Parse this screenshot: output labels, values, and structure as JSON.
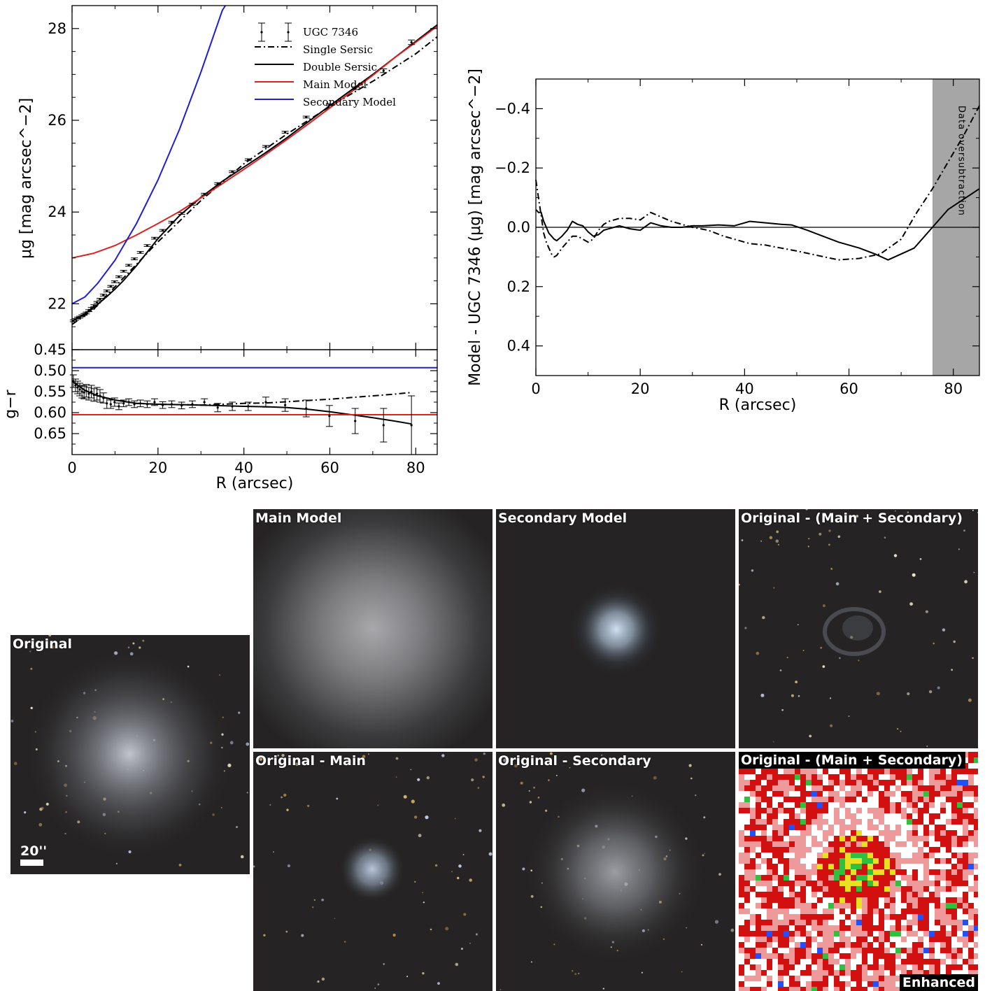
{
  "chart_data": [
    {
      "type": "line",
      "panel": "surface-brightness-profile",
      "ylabel": "μg [mag arcsec^−2]",
      "xlim": [
        0,
        85
      ],
      "ylim": [
        28.5,
        21.0
      ],
      "yticks": [
        "22",
        "24",
        "26",
        "28"
      ],
      "legend_position": "top-right",
      "legend": [
        "UGC 7346",
        "Single Sersic",
        "Double Sersic",
        "Main Model",
        "Secondary Model"
      ],
      "colors": {
        "data": "#000000",
        "single": "#000000",
        "double": "#000000",
        "main": "#e02020",
        "secondary": "#1f1fd0"
      },
      "observed": {
        "name": "UGC 7346",
        "x": [
          0.3,
          0.8,
          1.3,
          1.8,
          2.3,
          2.8,
          3.3,
          3.9,
          4.5,
          5.1,
          5.8,
          6.5,
          7.3,
          8.1,
          9.0,
          9.9,
          10.9,
          12.0,
          13.2,
          14.5,
          15.9,
          17.5,
          19.2,
          21.1,
          23.2,
          25.5,
          28.0,
          30.8,
          33.9,
          37.3,
          41.0,
          45.1,
          49.6,
          54.5,
          59.9,
          65.9,
          72.5,
          79.0
        ],
        "y": [
          21.63,
          21.66,
          21.69,
          21.71,
          21.74,
          21.77,
          21.8,
          21.85,
          21.9,
          21.96,
          22.03,
          22.1,
          22.19,
          22.28,
          22.38,
          22.48,
          22.59,
          22.71,
          22.84,
          22.98,
          23.12,
          23.27,
          23.43,
          23.6,
          23.78,
          23.97,
          24.17,
          24.39,
          24.62,
          24.88,
          25.14,
          25.43,
          25.74,
          26.07,
          26.34,
          26.7,
          27.08,
          27.7
        ],
        "yerr": [
          0.02,
          0.02,
          0.02,
          0.02,
          0.02,
          0.02,
          0.02,
          0.02,
          0.02,
          0.02,
          0.02,
          0.02,
          0.02,
          0.02,
          0.02,
          0.02,
          0.02,
          0.02,
          0.02,
          0.02,
          0.02,
          0.02,
          0.02,
          0.02,
          0.02,
          0.02,
          0.02,
          0.02,
          0.02,
          0.02,
          0.02,
          0.02,
          0.02,
          0.02,
          0.02,
          0.03,
          0.04,
          0.05
        ]
      },
      "series": [
        {
          "name": "Single Sersic",
          "style": "dashdot",
          "x": [
            0,
            5,
            10,
            20,
            30,
            40,
            50,
            60,
            70,
            80,
            85
          ],
          "y": [
            21.55,
            21.88,
            22.37,
            23.35,
            24.25,
            25.05,
            25.7,
            26.3,
            26.85,
            27.45,
            27.82
          ]
        },
        {
          "name": "Double Sersic",
          "style": "solid",
          "x": [
            0,
            1,
            2,
            3,
            4,
            5,
            6,
            7,
            8,
            10,
            12,
            15,
            20,
            25,
            30,
            35,
            40,
            45,
            50,
            55,
            60,
            65,
            70,
            75,
            80,
            85
          ],
          "y": [
            21.63,
            21.68,
            21.73,
            21.79,
            21.85,
            21.92,
            21.99,
            22.07,
            22.15,
            22.32,
            22.51,
            22.83,
            23.42,
            23.92,
            24.32,
            24.67,
            24.98,
            25.29,
            25.62,
            25.97,
            26.32,
            26.66,
            27.0,
            27.36,
            27.72,
            28.08
          ]
        },
        {
          "name": "Main Model",
          "style": "solid",
          "color": "#e02020",
          "x": [
            0,
            5,
            10,
            15,
            20,
            25,
            30,
            35,
            40,
            45,
            50,
            55,
            60,
            65,
            70,
            75,
            80,
            85
          ],
          "y": [
            23.0,
            23.1,
            23.27,
            23.5,
            23.75,
            24.01,
            24.31,
            24.62,
            24.93,
            25.25,
            25.58,
            25.92,
            26.27,
            26.62,
            26.98,
            27.36,
            27.7,
            28.05
          ]
        },
        {
          "name": "Secondary Model",
          "style": "solid",
          "color": "#1f1fd0",
          "x": [
            0,
            3,
            6,
            10,
            15,
            20,
            25,
            30,
            35,
            35.7
          ],
          "y": [
            22.0,
            22.15,
            22.45,
            22.95,
            23.75,
            24.7,
            25.8,
            27.05,
            28.4,
            28.5
          ]
        }
      ]
    },
    {
      "type": "line",
      "panel": "color-profile",
      "xlabel": "R (arcsec)",
      "ylabel": "g−r",
      "xlim": [
        0,
        85
      ],
      "ylim": [
        0.45,
        0.7
      ],
      "xticks": [
        "0",
        "20",
        "40",
        "60",
        "80"
      ],
      "yticks": [
        "0.45",
        "0.50",
        "0.55",
        "0.60",
        "0.65"
      ],
      "observed": {
        "name": "UGC 7346",
        "x": [
          0.3,
          0.8,
          1.3,
          1.8,
          2.3,
          2.8,
          3.3,
          3.9,
          4.5,
          5.1,
          5.8,
          6.5,
          7.3,
          8.1,
          9.0,
          9.9,
          10.9,
          12.0,
          13.2,
          14.5,
          15.9,
          17.5,
          19.2,
          21.1,
          23.2,
          25.5,
          28.0,
          30.8,
          33.9,
          37.3,
          41.0,
          45.1,
          49.6,
          54.5,
          59.9,
          65.9,
          72.5,
          79.0
        ],
        "y": [
          0.525,
          0.535,
          0.54,
          0.545,
          0.55,
          0.552,
          0.548,
          0.555,
          0.55,
          0.558,
          0.555,
          0.56,
          0.565,
          0.578,
          0.58,
          0.575,
          0.585,
          0.578,
          0.575,
          0.58,
          0.578,
          0.58,
          0.575,
          0.582,
          0.58,
          0.583,
          0.58,
          0.575,
          0.588,
          0.585,
          0.585,
          0.575,
          0.582,
          0.59,
          0.608,
          0.62,
          0.63,
          0.63
        ],
        "yerr": [
          0.015,
          0.015,
          0.015,
          0.015,
          0.015,
          0.015,
          0.015,
          0.015,
          0.015,
          0.015,
          0.015,
          0.015,
          0.012,
          0.012,
          0.01,
          0.01,
          0.008,
          0.008,
          0.008,
          0.008,
          0.008,
          0.008,
          0.008,
          0.008,
          0.008,
          0.008,
          0.008,
          0.008,
          0.01,
          0.01,
          0.01,
          0.012,
          0.015,
          0.02,
          0.025,
          0.03,
          0.04,
          0.07
        ]
      },
      "series": [
        {
          "name": "Single Sersic",
          "style": "dashdot",
          "x": [
            0,
            3,
            6,
            10,
            15,
            20,
            30,
            40,
            45,
            50,
            55,
            60,
            65,
            70,
            75,
            79
          ],
          "y": [
            0.525,
            0.547,
            0.56,
            0.57,
            0.578,
            0.58,
            0.582,
            0.578,
            0.577,
            0.574,
            0.571,
            0.568,
            0.564,
            0.56,
            0.556,
            0.552
          ]
        },
        {
          "name": "Double Sersic",
          "style": "solid",
          "x": [
            0,
            3,
            6,
            10,
            15,
            20,
            30,
            40,
            45,
            50,
            55,
            60,
            65,
            70,
            75,
            79
          ],
          "y": [
            0.525,
            0.547,
            0.56,
            0.57,
            0.578,
            0.58,
            0.582,
            0.585,
            0.586,
            0.588,
            0.592,
            0.598,
            0.605,
            0.612,
            0.62,
            0.627
          ]
        },
        {
          "name": "Main Model",
          "style": "solid",
          "color": "#e02020",
          "x": [
            0,
            85
          ],
          "y": [
            0.605,
            0.605
          ]
        },
        {
          "name": "Secondary Model",
          "style": "solid",
          "color": "#1f1fd0",
          "x": [
            0,
            85
          ],
          "y": [
            0.493,
            0.493
          ]
        }
      ]
    },
    {
      "type": "line",
      "panel": "residuals",
      "xlabel": "R (arcsec)",
      "ylabel": "Model - UGC 7346 (μg) [mag arcsec^−2]",
      "xlim": [
        0,
        85
      ],
      "ylim": [
        -0.5,
        0.5
      ],
      "xticks": [
        "0",
        "20",
        "40",
        "60",
        "80"
      ],
      "yticks": [
        "0.4",
        "0.2",
        "0.0",
        "−0.2",
        "−0.4"
      ],
      "shaded_region": {
        "x_from": 76,
        "x_to": 85,
        "label": "Data oversubtraction",
        "color": "#a6a6a6"
      },
      "series": [
        {
          "name": "Double Sersic",
          "style": "solid",
          "x": [
            0,
            0.5,
            1,
            1.5,
            2,
            2.5,
            3,
            3.5,
            4,
            5,
            6,
            7,
            8,
            9,
            10,
            11,
            12,
            13,
            14,
            16,
            18,
            20,
            22,
            24,
            26,
            28,
            30,
            32,
            35,
            38,
            41,
            44,
            47,
            49,
            52,
            55,
            58,
            62,
            65,
            67.5,
            70,
            72.5,
            76,
            79,
            85
          ],
          "y": [
            -0.06,
            -0.05,
            -0.05,
            -0.02,
            0.0,
            0.02,
            0.03,
            0.04,
            0.045,
            0.03,
            0.01,
            -0.02,
            -0.01,
            -0.005,
            0.015,
            0.03,
            0.025,
            0.01,
            0.005,
            -0.005,
            0.005,
            0.01,
            -0.015,
            -0.005,
            0.0,
            0.0,
            -0.005,
            -0.005,
            -0.008,
            -0.005,
            -0.02,
            -0.015,
            -0.01,
            -0.008,
            0.01,
            0.03,
            0.05,
            0.07,
            0.09,
            0.11,
            0.09,
            0.07,
            0.0,
            -0.06,
            -0.13
          ]
        },
        {
          "name": "Single Sersic",
          "style": "dashdot",
          "x": [
            0,
            0.5,
            1,
            1.5,
            2,
            2.5,
            3,
            3.5,
            4,
            5,
            6,
            7,
            8,
            9,
            10,
            11,
            12,
            13,
            14,
            16,
            18,
            20,
            22,
            24,
            26,
            28,
            30,
            33,
            36,
            39,
            41,
            44,
            47,
            50,
            54,
            58,
            62,
            66,
            70,
            73,
            76,
            79,
            82,
            85
          ],
          "y": [
            -0.16,
            -0.1,
            -0.04,
            0.02,
            0.05,
            0.07,
            0.09,
            0.1,
            0.095,
            0.07,
            0.05,
            0.03,
            0.03,
            0.04,
            0.05,
            0.04,
            0.01,
            -0.01,
            -0.02,
            -0.03,
            -0.03,
            -0.025,
            -0.05,
            -0.035,
            -0.02,
            -0.01,
            0.0,
            0.01,
            0.03,
            0.045,
            0.055,
            0.06,
            0.07,
            0.08,
            0.095,
            0.11,
            0.105,
            0.09,
            0.04,
            -0.05,
            -0.13,
            -0.22,
            -0.31,
            -0.41
          ]
        }
      ]
    }
  ],
  "panels": {
    "original": {
      "label": "Original",
      "scale_label": "20''"
    },
    "main_model": {
      "label": "Main Model"
    },
    "secondary_model": {
      "label": "Secondary Model"
    },
    "residual_both": {
      "label": "Original - (Main + Secondary)"
    },
    "residual_main": {
      "label": "Original - Main"
    },
    "residual_secondary": {
      "label": "Original - Secondary"
    },
    "residual_enhanced": {
      "label": "Original - (Main + Secondary)",
      "badge": "Enhanced"
    }
  },
  "colors": {
    "sky": "#252323",
    "galaxy_glow": "#c9cdd6",
    "secondary_glow": "#cfe0f2",
    "enhanced_red": "#d21010",
    "enhanced_pink": "#ee9a9a",
    "enhanced_yellow": "#e8e020",
    "enhanced_green": "#30c040",
    "enhanced_blue": "#2050ff"
  }
}
